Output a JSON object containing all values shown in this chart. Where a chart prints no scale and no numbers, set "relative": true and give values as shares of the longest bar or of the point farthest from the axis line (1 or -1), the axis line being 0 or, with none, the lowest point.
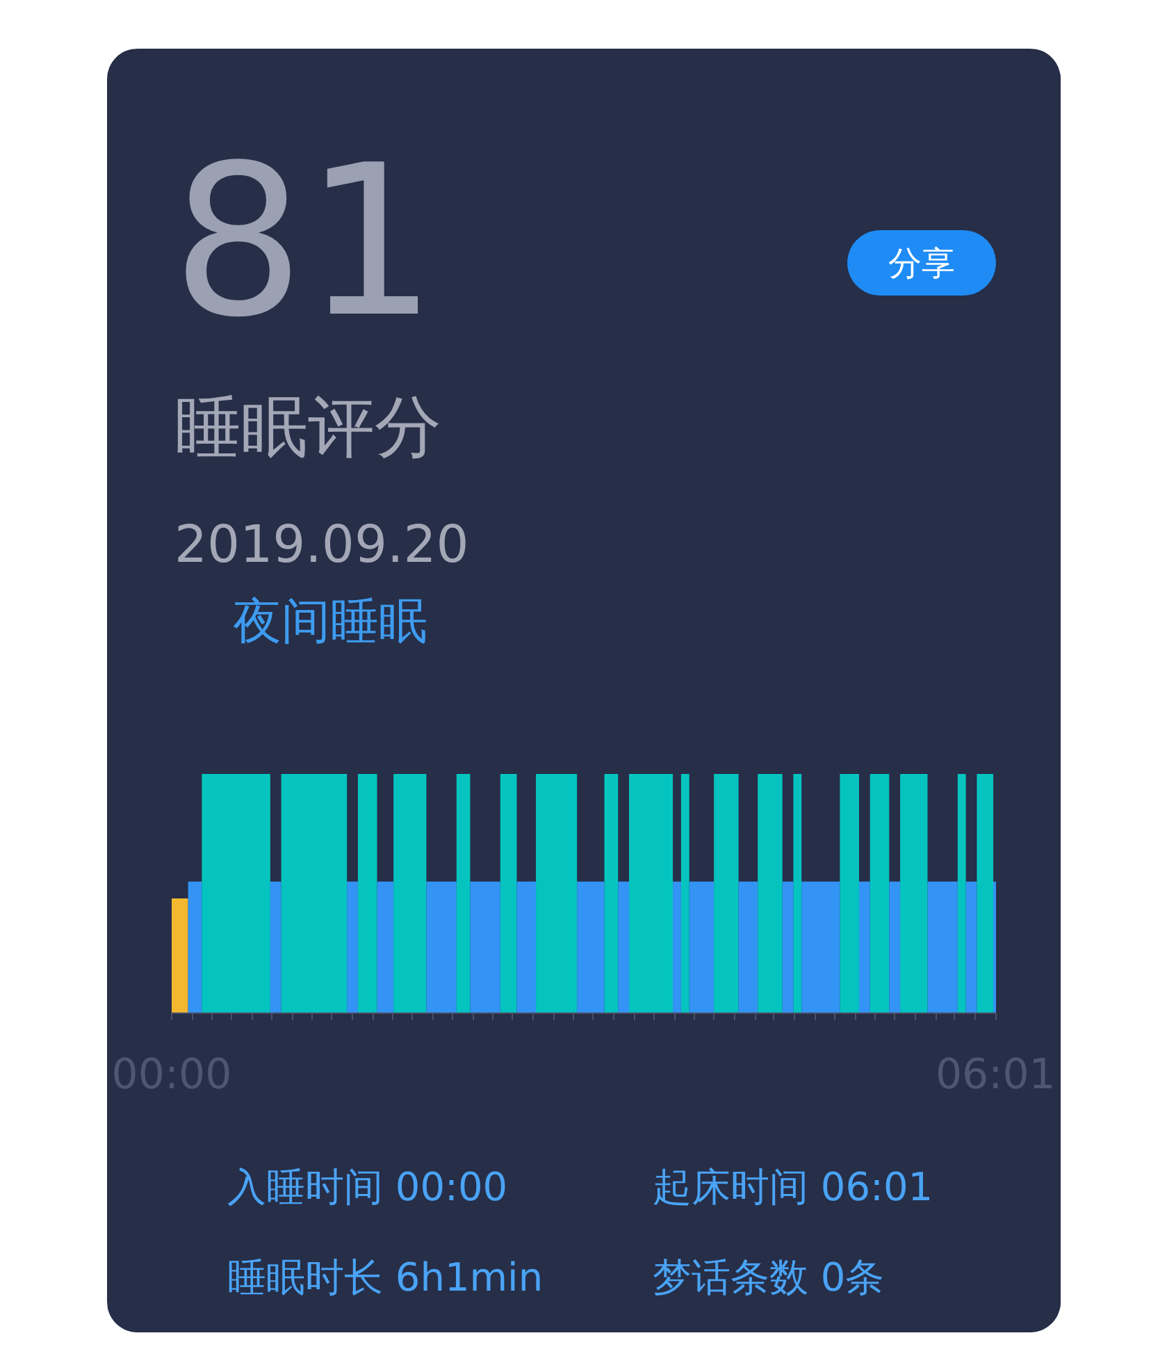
{
  "chart_data": [
    {
      "type": "other",
      "annotations": [
        "81",
        "分享",
        "睡眠评分",
        "2019.09.20",
        "夜间睡眠"
      ]
    },
    {
      "type": "bar",
      "relative": true,
      "x": [
        0.06,
        0.17,
        0.47,
        0.76,
        1.04,
        1.32,
        1.43,
        1.56,
        1.74,
        1.97,
        2.13,
        2.29,
        2.46,
        2.59,
        2.81,
        3.06,
        3.21,
        3.3,
        3.5,
        3.69,
        3.75,
        3.87,
        4.05,
        4.21,
        4.37,
        4.5,
        4.57,
        4.74,
        4.95,
        5.06,
        5.17,
        5.28,
        5.42,
        5.63,
        5.77,
        5.84,
        5.94,
        6.01
      ],
      "values": [
        0.48,
        0.55,
        1,
        0.55,
        1,
        0.55,
        1,
        0.55,
        1,
        0.55,
        1,
        0.55,
        1,
        0.55,
        1,
        0.55,
        1,
        0.55,
        1,
        0.55,
        1,
        0.55,
        1,
        0.55,
        1,
        0.55,
        1,
        0.55,
        1,
        0.55,
        1,
        0.55,
        1,
        0.55,
        1,
        0.55,
        1,
        0.55
      ],
      "colors": [
        "#f2b830",
        "#3394f5",
        "#05c4c0",
        "#3394f5",
        "#05c4c0",
        "#3394f5",
        "#05c4c0",
        "#3394f5",
        "#05c4c0",
        "#3394f5",
        "#05c4c0",
        "#3394f5",
        "#05c4c0",
        "#3394f5",
        "#05c4c0",
        "#3394f5",
        "#05c4c0",
        "#3394f5",
        "#05c4c0",
        "#3394f5",
        "#05c4c0",
        "#3394f5",
        "#05c4c0",
        "#3394f5",
        "#05c4c0",
        "#3394f5",
        "#05c4c0",
        "#3394f5",
        "#05c4c0",
        "#3394f5",
        "#05c4c0",
        "#3394f5",
        "#05c4c0",
        "#3394f5",
        "#05c4c0",
        "#3394f5",
        "#05c4c0",
        "#3394f5"
      ],
      "xlim": [
        0,
        6.02
      ],
      "xticks": [
        {
          "value": 0,
          "label": "00:00"
        },
        {
          "value": 0.15,
          "label": null
        },
        {
          "value": 0.29,
          "label": null
        },
        {
          "value": 0.44,
          "label": null
        },
        {
          "value": 0.59,
          "label": null
        },
        {
          "value": 0.73,
          "label": null
        },
        {
          "value": 0.88,
          "label": null
        },
        {
          "value": 1.03,
          "label": null
        },
        {
          "value": 1.17,
          "label": null
        },
        {
          "value": 1.32,
          "label": null
        },
        {
          "value": 1.47,
          "label": null
        },
        {
          "value": 1.61,
          "label": null
        },
        {
          "value": 1.76,
          "label": null
        },
        {
          "value": 1.91,
          "label": null
        },
        {
          "value": 2.05,
          "label": null
        },
        {
          "value": 2.2,
          "label": null
        },
        {
          "value": 2.35,
          "label": null
        },
        {
          "value": 2.49,
          "label": null
        },
        {
          "value": 2.64,
          "label": null
        },
        {
          "value": 2.79,
          "label": null
        },
        {
          "value": 2.93,
          "label": null
        },
        {
          "value": 3.08,
          "label": null
        },
        {
          "value": 3.23,
          "label": null
        },
        {
          "value": 3.38,
          "label": null
        },
        {
          "value": 3.52,
          "label": null
        },
        {
          "value": 3.67,
          "label": null
        },
        {
          "value": 3.82,
          "label": null
        },
        {
          "value": 3.96,
          "label": null
        },
        {
          "value": 4.11,
          "label": null
        },
        {
          "value": 4.26,
          "label": null
        },
        {
          "value": 4.4,
          "label": null
        },
        {
          "value": 4.55,
          "label": null
        },
        {
          "value": 4.7,
          "label": null
        },
        {
          "value": 4.84,
          "label": null
        },
        {
          "value": 4.99,
          "label": null
        },
        {
          "value": 5.14,
          "label": null
        },
        {
          "value": 5.28,
          "label": null
        },
        {
          "value": 5.43,
          "label": null
        },
        {
          "value": 5.58,
          "label": null
        },
        {
          "value": 5.72,
          "label": null
        },
        {
          "value": 5.87,
          "label": null
        },
        {
          "value": 6.0167,
          "label": "06:01"
        }
      ]
    },
    {
      "type": "other",
      "annotations": [
        "入睡时间 00:00",
        "起床时间 06:01",
        "睡眠时长 6h1min",
        "梦话条数 0条"
      ]
    }
  ]
}
